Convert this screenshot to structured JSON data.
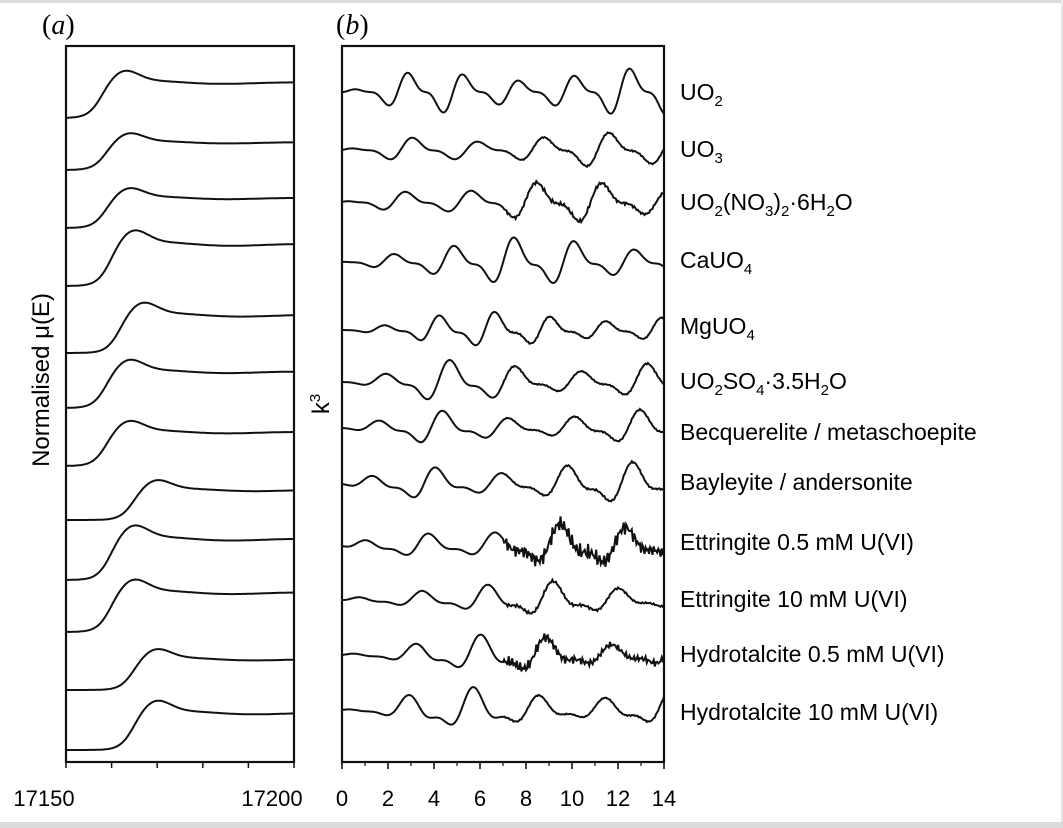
{
  "chart_data": [
    {
      "type": "line",
      "panel_label": "(a)",
      "panel_letter": "a",
      "title": "",
      "xlabel": "",
      "ylabel": "Normalised μ(E)",
      "xlim": [
        17150,
        17200
      ],
      "x_ticks": [
        "17150",
        "17200"
      ],
      "y_ticks": "none",
      "description": "Stacked normalised U L3-edge XANES spectra, one per sample (top to bottom)",
      "series": [
        {
          "name": "UO2",
          "white_line_energy": 17162
        },
        {
          "name": "UO3",
          "white_line_energy": 17163
        },
        {
          "name": "UO2(NO3)2·6H2O",
          "white_line_energy": 17163
        },
        {
          "name": "CaUO4",
          "white_line_energy": 17164
        },
        {
          "name": "MgUO4",
          "white_line_energy": 17166
        },
        {
          "name": "UO2SO4·3.5H2O",
          "white_line_energy": 17163
        },
        {
          "name": "Becquerelite / metaschoepite",
          "white_line_energy": 17163
        },
        {
          "name": "Bayleyite / andersonite",
          "white_line_energy": 17169
        },
        {
          "name": "Ettringite 0.5 mM U(VI)",
          "white_line_energy": 17164
        },
        {
          "name": "Ettringite 10 mM U(VI)",
          "white_line_energy": 17164
        },
        {
          "name": "Hydrotalcite 0.5 mM U(VI)",
          "white_line_energy": 17169
        },
        {
          "name": "Hydrotalcite 10 mM U(VI)",
          "white_line_energy": 17169
        }
      ]
    },
    {
      "type": "line",
      "panel_label": "(b)",
      "panel_letter": "b",
      "title": "",
      "xlabel": "",
      "ylabel": "k",
      "ylabel_sup": "3",
      "xlim": [
        0,
        14
      ],
      "x_ticks": [
        "0",
        "2",
        "4",
        "6",
        "8",
        "10",
        "12",
        "14"
      ],
      "y_ticks": "none",
      "description": "Stacked k3-weighted EXAFS spectra, one per sample (top to bottom)",
      "series": [
        {
          "name": "UO2",
          "label": {
            "t": "UO",
            "s": "2",
            "u": ""
          }
        },
        {
          "name": "UO3",
          "label": {
            "t": "UO",
            "s": "3",
            "u": ""
          }
        },
        {
          "name": "UO2(NO3)2·6H2O",
          "label": {
            "a": "UO",
            "b": "2",
            "c": "(NO",
            "d": "3",
            "e": ")",
            "f": "2",
            "g": "·6H",
            "h": "2",
            "i": "O"
          }
        },
        {
          "name": "CaUO4",
          "label": {
            "t": "CaUO",
            "s": "4",
            "u": ""
          }
        },
        {
          "name": "MgUO4",
          "label": {
            "t": "MgUO",
            "s": "4",
            "u": ""
          }
        },
        {
          "name": "UO2SO4·3.5H2O",
          "label": {
            "a": "UO",
            "b": "2",
            "c": "SO",
            "d": "4",
            "e": "·3.5H",
            "f": "2",
            "g": "O"
          }
        },
        {
          "name": "Becquerelite / metaschoepite",
          "label": {
            "t": "Becquerelite / metaschoepite"
          }
        },
        {
          "name": "Bayleyite / andersonite",
          "label": {
            "t": "Bayleyite / andersonite"
          }
        },
        {
          "name": "Ettringite 0.5 mM U(VI)",
          "label": {
            "t": "Ettringite 0.5 mM U(VI)"
          }
        },
        {
          "name": "Ettringite 10 mM U(VI)",
          "label": {
            "t": "Ettringite 10 mM U(VI)"
          }
        },
        {
          "name": "Hydrotalcite 0.5 mM U(VI)",
          "label": {
            "t": "Hydrotalcite 0.5 mM U(VI)"
          }
        },
        {
          "name": "Hydrotalcite 10 mM U(VI)",
          "label": {
            "t": "Hydrotalcite 10 mM U(VI)"
          }
        }
      ]
    }
  ],
  "colors": {
    "line": "#111111",
    "axis": "#111111",
    "frame": "#dcdcdc"
  }
}
